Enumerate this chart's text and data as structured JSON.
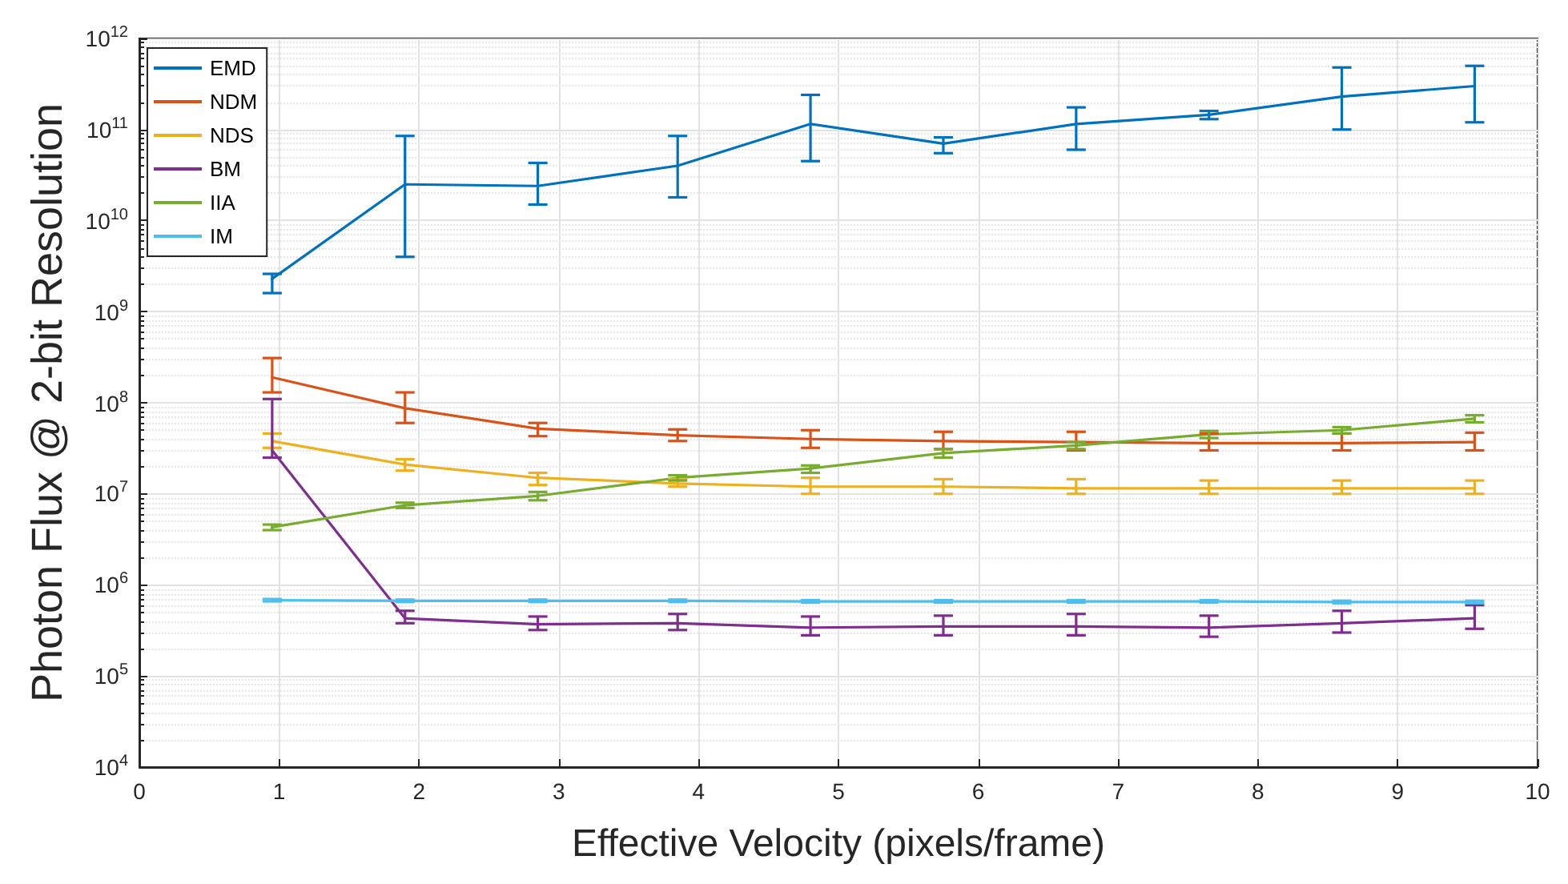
{
  "chart_data": {
    "type": "line",
    "xlabel": "Effective Velocity (pixels/frame)",
    "ylabel": "Photon Flux @ 2-bit Resolution",
    "x": [
      0.95,
      1.9,
      2.85,
      3.85,
      4.8,
      5.75,
      6.7,
      7.65,
      8.6,
      9.55
    ],
    "series": [
      {
        "name": "EMD",
        "color": "#0072bd",
        "values": [
          2300000000.0,
          25000000000.0,
          24000000000.0,
          40000000000.0,
          115000000000.0,
          70000000000.0,
          115000000000.0,
          145000000000.0,
          230000000000.0,
          300000000000.0
        ],
        "errors": [
          [
            1600000000.0,
            2600000000.0
          ],
          [
            4000000000.0,
            85000000000.0
          ],
          [
            15000000000.0,
            43000000000.0
          ],
          [
            18000000000.0,
            85000000000.0
          ],
          [
            45000000000.0,
            240000000000.0
          ],
          [
            55000000000.0,
            82000000000.0
          ],
          [
            60000000000.0,
            175000000000.0
          ],
          [
            130000000000.0,
            160000000000.0
          ],
          [
            100000000000.0,
            480000000000.0
          ],
          [
            120000000000.0,
            500000000000.0
          ]
        ]
      },
      {
        "name": "NDM",
        "color": "#d95319",
        "values": [
          190000000.0,
          87000000.0,
          52000000.0,
          44000000.0,
          40000000.0,
          38000000.0,
          37000000.0,
          36000000.0,
          36000000.0,
          37000000.0
        ],
        "errors": [
          [
            130000000.0,
            310000000.0
          ],
          [
            60000000.0,
            130000000.0
          ],
          [
            43000000.0,
            60000000.0
          ],
          [
            38000000.0,
            51000000.0
          ],
          [
            32000000.0,
            50000000.0
          ],
          [
            31000000.0,
            48000000.0
          ],
          [
            30000000.0,
            48000000.0
          ],
          [
            30000000.0,
            46000000.0
          ],
          [
            30000000.0,
            46000000.0
          ],
          [
            30000000.0,
            47000000.0
          ]
        ]
      },
      {
        "name": "NDS",
        "color": "#edb120",
        "values": [
          38000000.0,
          21000000.0,
          15000000.0,
          13000000.0,
          12000000.0,
          12000000.0,
          11500000.0,
          11500000.0,
          11500000.0,
          11500000.0
        ],
        "errors": [
          [
            32000000.0,
            46000000.0
          ],
          [
            18000000.0,
            24000000.0
          ],
          [
            12500000.0,
            17000000.0
          ],
          [
            12000000.0,
            14500000.0
          ],
          [
            10000000.0,
            15000000.0
          ],
          [
            10000000.0,
            14500000.0
          ],
          [
            10000000.0,
            14500000.0
          ],
          [
            10000000.0,
            14000000.0
          ],
          [
            10000000.0,
            14000000.0
          ],
          [
            10000000.0,
            14000000.0
          ]
        ]
      },
      {
        "name": "BM",
        "color": "#7e2f8e",
        "values": [
          30000000.0,
          430000.0,
          370000.0,
          380000.0,
          340000.0,
          350000.0,
          350000.0,
          340000.0,
          380000.0,
          430000.0
        ],
        "errors": [
          [
            25000000.0,
            110000000.0
          ],
          [
            380000.0,
            520000.0
          ],
          [
            320000.0,
            450000.0
          ],
          [
            320000.0,
            480000.0
          ],
          [
            280000.0,
            450000.0
          ],
          [
            280000.0,
            460000.0
          ],
          [
            280000.0,
            480000.0
          ],
          [
            270000.0,
            460000.0
          ],
          [
            300000.0,
            520000.0
          ],
          [
            330000.0,
            600000.0
          ]
        ]
      },
      {
        "name": "IIA",
        "color": "#77ac30",
        "values": [
          4300000.0,
          7500000.0,
          9500000.0,
          15000000.0,
          19000000.0,
          28000000.0,
          34000000.0,
          45000000.0,
          50000000.0,
          67000000.0
        ],
        "errors": [
          [
            4000000.0,
            4600000.0
          ],
          [
            7000000.0,
            8000000.0
          ],
          [
            8500000.0,
            10500000.0
          ],
          [
            14000000.0,
            16000000.0
          ],
          [
            17000000.0,
            20500000.0
          ],
          [
            25000000.0,
            31000000.0
          ],
          [
            31000000.0,
            37000000.0
          ],
          [
            41000000.0,
            49000000.0
          ],
          [
            46000000.0,
            54000000.0
          ],
          [
            61000000.0,
            73000000.0
          ]
        ]
      },
      {
        "name": "IM",
        "color": "#4dbeee",
        "values": [
          680000.0,
          670000.0,
          670000.0,
          670000.0,
          660000.0,
          660000.0,
          660000.0,
          660000.0,
          650000.0,
          650000.0
        ],
        "errors": [
          [
            660000.0,
            700000.0
          ],
          [
            650000.0,
            690000.0
          ],
          [
            650000.0,
            690000.0
          ],
          [
            650000.0,
            690000.0
          ],
          [
            640000.0,
            680000.0
          ],
          [
            640000.0,
            680000.0
          ],
          [
            640000.0,
            680000.0
          ],
          [
            640000.0,
            680000.0
          ],
          [
            630000.0,
            670000.0
          ],
          [
            630000.0,
            670000.0
          ]
        ]
      }
    ],
    "xlim": [
      0,
      10
    ],
    "xticks": [
      0,
      1,
      2,
      3,
      4,
      5,
      6,
      7,
      8,
      9,
      10
    ],
    "ylim": [
      10000.0,
      1000000000000.0
    ],
    "log": true,
    "yticks": [
      {
        "value": 10000.0,
        "label": "10$^{4}$"
      },
      {
        "value": 100000.0,
        "label": "10$^{5}$"
      },
      {
        "value": 1000000.0,
        "label": "10$^{6}$"
      },
      {
        "value": 10000000.0,
        "label": "10$^{7}$"
      },
      {
        "value": 100000000.0,
        "label": "10$^{8}$"
      },
      {
        "value": 1000000000.0,
        "label": "10$^{9}$"
      },
      {
        "value": 10000000000.0,
        "label": "10$^{10}$"
      },
      {
        "value": 100000000000.0,
        "label": "10$^{11}$"
      },
      {
        "value": 1000000000000.0,
        "label": "10$^{12}$"
      }
    ],
    "grid": true,
    "legend": "top left",
    "marker": "none",
    "line_style": "solid"
  }
}
